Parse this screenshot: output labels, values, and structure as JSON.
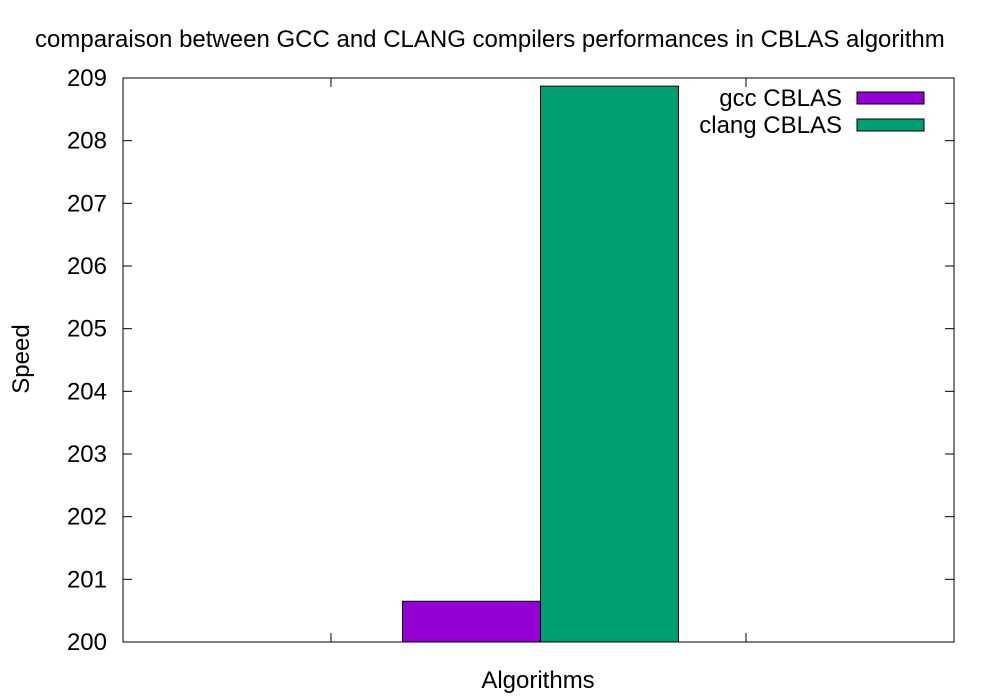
{
  "chart_data": {
    "type": "bar",
    "title": "comparaison between GCC and CLANG compilers performances in CBLAS algorithm",
    "xlabel": "Algorithms",
    "ylabel": "Speed",
    "ylim": [
      200,
      209
    ],
    "yticks": [
      200,
      201,
      202,
      203,
      204,
      205,
      206,
      207,
      208,
      209
    ],
    "grid": false,
    "legend_position": "top-right",
    "categories": [
      ""
    ],
    "series": [
      {
        "name": "gcc CBLAS",
        "color": "#9400d3",
        "values": [
          200.65
        ]
      },
      {
        "name": "clang CBLAS",
        "color": "#009e73",
        "values": [
          208.87
        ]
      }
    ]
  }
}
